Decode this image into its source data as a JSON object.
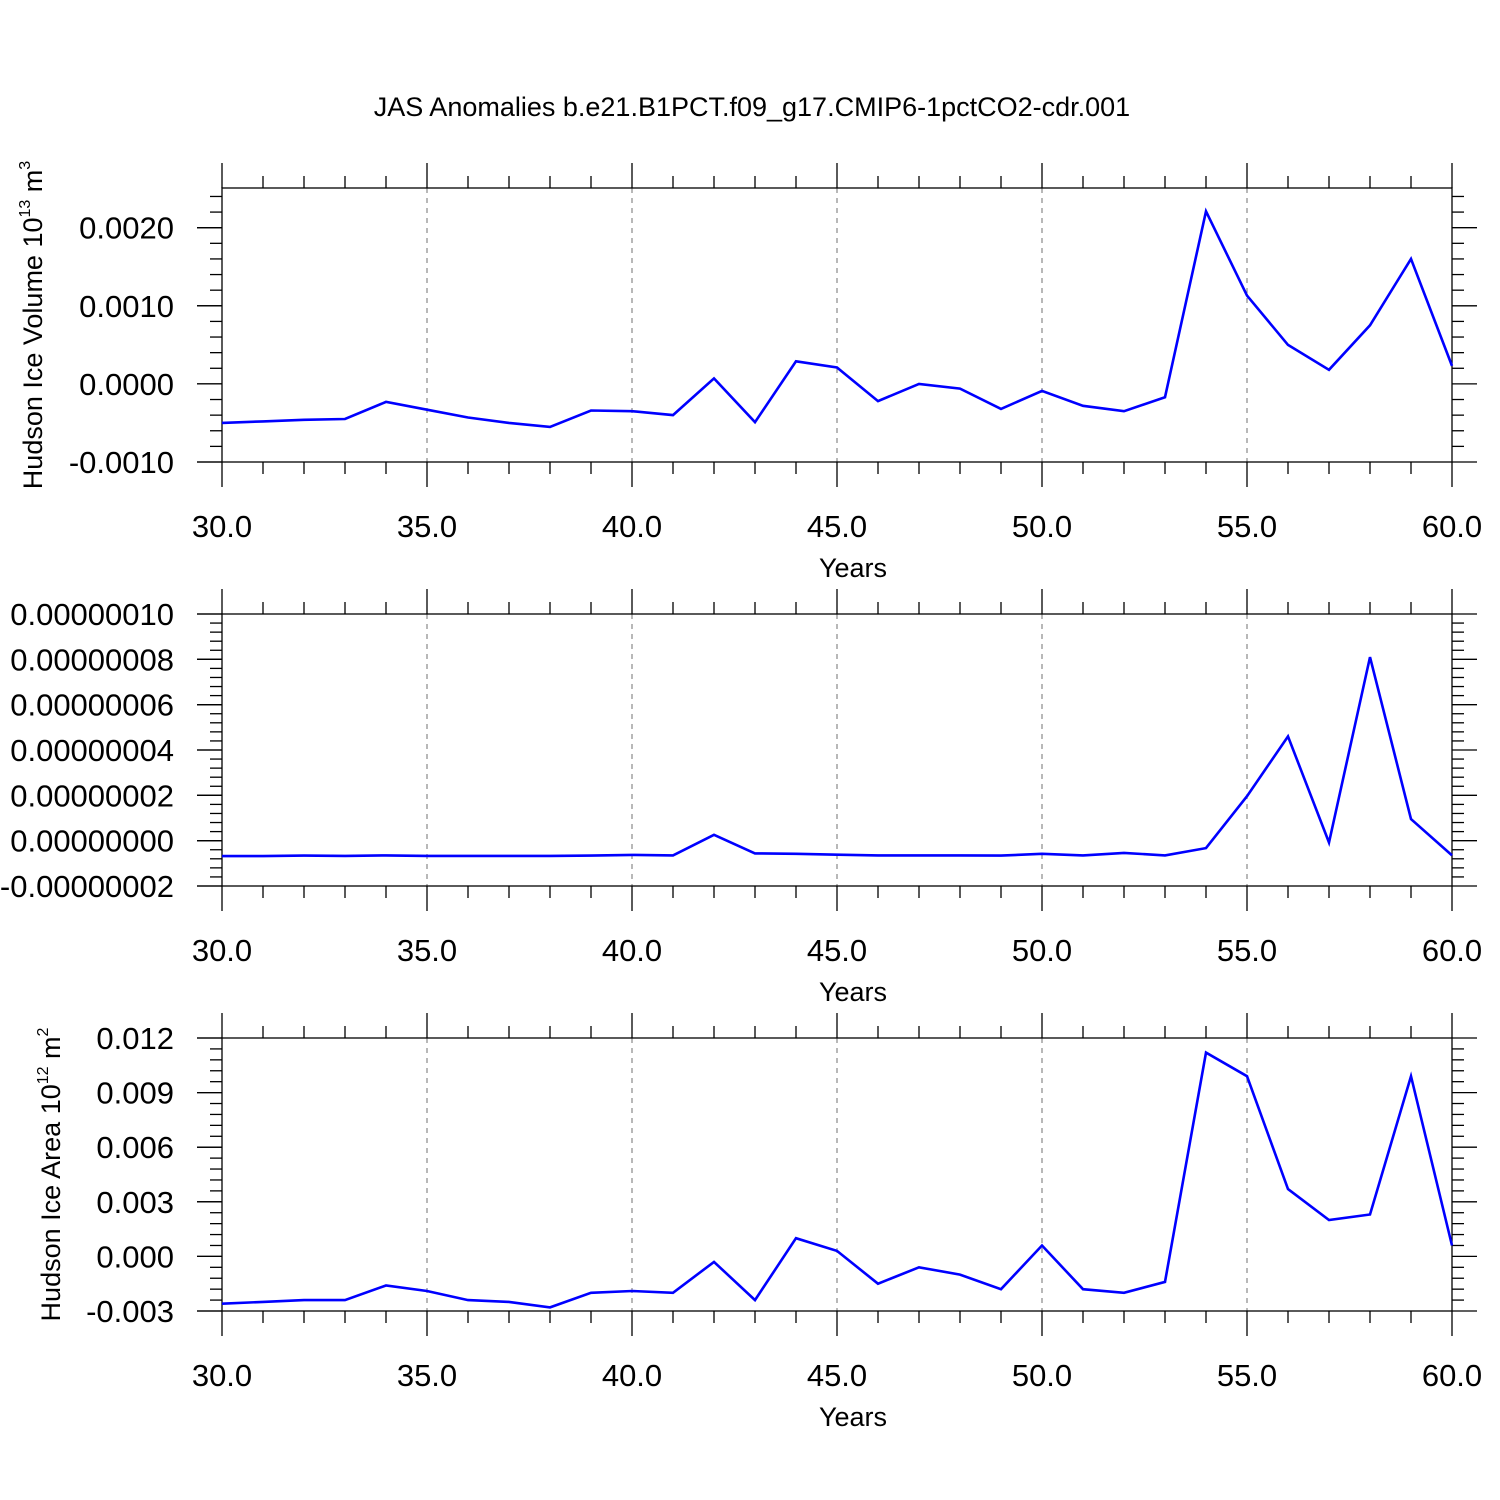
{
  "title": "JAS Anomalies b.e21.B1PCT.f09_g17.CMIP6-1pctCO2-cdr.001",
  "line_color": "#0000ff",
  "chart_data": [
    {
      "type": "line",
      "xlabel": "Years",
      "ylabel_parts": [
        "Hudson Ice Volume 10",
        "13",
        " m",
        "3"
      ],
      "xlim": [
        30,
        60
      ],
      "ylim": [
        -0.001,
        0.0025
      ],
      "x_ticks": [
        30,
        35,
        40,
        45,
        50,
        55,
        60
      ],
      "x_tick_labels": [
        "30.0",
        "35.0",
        "40.0",
        "45.0",
        "50.0",
        "55.0",
        "60.0"
      ],
      "y_ticks": [
        -0.001,
        0,
        0.001,
        0.002
      ],
      "y_tick_labels": [
        "-0.0010",
        "0.0000",
        "0.0010",
        "0.0020"
      ],
      "grid": "vertical dashed at major x ticks",
      "series": [
        {
          "x": [
            30,
            31,
            32,
            33,
            34,
            35,
            36,
            37,
            38,
            39,
            40,
            41,
            42,
            43,
            44,
            45,
            46,
            47,
            48,
            49,
            50,
            51,
            52,
            53,
            54,
            55,
            56,
            57,
            58,
            59,
            60
          ],
          "values": [
            -0.0005,
            -0.00048,
            -0.00046,
            -0.00045,
            -0.00023,
            -0.00033,
            -0.00043,
            -0.0005,
            -0.00055,
            -0.00034,
            -0.00035,
            -0.0004,
            7e-05,
            -0.00049,
            0.00029,
            0.00021,
            -0.00022,
            0.0,
            -6e-05,
            -0.00032,
            -9e-05,
            -0.00028,
            -0.00035,
            -0.00017,
            0.00221,
            0.00113,
            0.0005,
            0.00018,
            0.00075,
            0.0016,
            0.00023
          ]
        }
      ]
    },
    {
      "type": "line",
      "xlabel": "Years",
      "ylabel_parts": [],
      "xlim": [
        30,
        60
      ],
      "ylim": [
        -2e-08,
        1e-07
      ],
      "x_ticks": [
        30,
        35,
        40,
        45,
        50,
        55,
        60
      ],
      "x_tick_labels": [
        "30.0",
        "35.0",
        "40.0",
        "45.0",
        "50.0",
        "55.0",
        "60.0"
      ],
      "y_ticks": [
        -2e-08,
        0,
        2e-08,
        4e-08,
        6e-08,
        8e-08,
        1e-07
      ],
      "y_tick_labels": [
        "-0.00000002",
        "0.00000000",
        "0.00000002",
        "0.00000004",
        "0.00000006",
        "0.00000008",
        "0.00000010"
      ],
      "grid": "vertical dashed at major x ticks",
      "series": [
        {
          "x": [
            30,
            31,
            32,
            33,
            34,
            35,
            36,
            37,
            38,
            39,
            40,
            41,
            42,
            43,
            44,
            45,
            46,
            47,
            48,
            49,
            50,
            51,
            52,
            53,
            54,
            55,
            56,
            57,
            58,
            59,
            60
          ],
          "values": [
            -6.8e-09,
            -6.8e-09,
            -6.6e-09,
            -6.7e-09,
            -6.5e-09,
            -6.7e-09,
            -6.7e-09,
            -6.7e-09,
            -6.7e-09,
            -6.6e-09,
            -6.3e-09,
            -6.5e-09,
            2.6e-09,
            -5.6e-09,
            -5.8e-09,
            -6.2e-09,
            -6.5e-09,
            -6.5e-09,
            -6.5e-09,
            -6.6e-09,
            -5.8e-09,
            -6.5e-09,
            -5.4e-09,
            -6.5e-09,
            -3.3e-09,
            1.96e-08,
            4.6e-08,
            -8e-10,
            8.1e-08,
            9.5e-09,
            -6.5e-09
          ]
        }
      ]
    },
    {
      "type": "line",
      "xlabel": "Years",
      "ylabel_parts": [
        "Hudson Ice Area 10",
        "12",
        " m",
        "2"
      ],
      "xlim": [
        30,
        60
      ],
      "ylim": [
        -0.003,
        0.012
      ],
      "x_ticks": [
        30,
        35,
        40,
        45,
        50,
        55,
        60
      ],
      "x_tick_labels": [
        "30.0",
        "35.0",
        "40.0",
        "45.0",
        "50.0",
        "55.0",
        "60.0"
      ],
      "y_ticks": [
        -0.003,
        0,
        0.003,
        0.006,
        0.009,
        0.012
      ],
      "y_tick_labels": [
        "-0.003",
        "0.000",
        "0.003",
        "0.006",
        "0.009",
        "0.012"
      ],
      "grid": "vertical dashed at major x ticks",
      "series": [
        {
          "x": [
            30,
            31,
            32,
            33,
            34,
            35,
            36,
            37,
            38,
            39,
            40,
            41,
            42,
            43,
            44,
            45,
            46,
            47,
            48,
            49,
            50,
            51,
            52,
            53,
            54,
            55,
            56,
            57,
            58,
            59,
            60
          ],
          "values": [
            -0.0026,
            -0.0025,
            -0.0024,
            -0.0024,
            -0.0016,
            -0.0019,
            -0.0024,
            -0.0025,
            -0.0028,
            -0.002,
            -0.0019,
            -0.002,
            -0.0003,
            -0.0024,
            0.001,
            0.0003,
            -0.0015,
            -0.0006,
            -0.001,
            -0.0018,
            0.0006,
            -0.0018,
            -0.002,
            -0.0014,
            0.0112,
            0.0099,
            0.0037,
            0.002,
            0.0023,
            0.0099,
            0.0006
          ]
        }
      ]
    }
  ]
}
